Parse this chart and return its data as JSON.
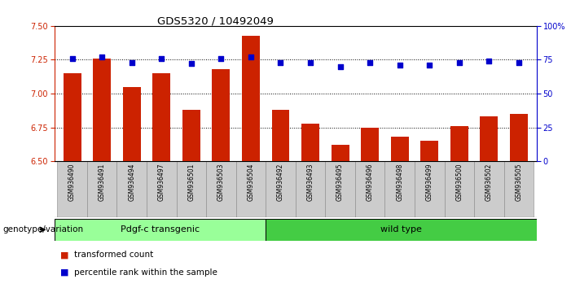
{
  "title": "GDS5320 / 10492049",
  "samples": [
    "GSM936490",
    "GSM936491",
    "GSM936494",
    "GSM936497",
    "GSM936501",
    "GSM936503",
    "GSM936504",
    "GSM936492",
    "GSM936493",
    "GSM936495",
    "GSM936496",
    "GSM936498",
    "GSM936499",
    "GSM936500",
    "GSM936502",
    "GSM936505"
  ],
  "bar_values": [
    7.15,
    7.26,
    7.05,
    7.15,
    6.88,
    7.18,
    7.43,
    6.88,
    6.78,
    6.62,
    6.75,
    6.68,
    6.65,
    6.76,
    6.83,
    6.85
  ],
  "percentile_values": [
    76,
    77,
    73,
    76,
    72,
    76,
    77,
    73,
    73,
    70,
    73,
    71,
    71,
    73,
    74,
    73
  ],
  "group1_label": "Pdgf-c transgenic",
  "group2_label": "wild type",
  "group1_count": 7,
  "group2_count": 9,
  "ylim_left": [
    6.5,
    7.5
  ],
  "ylim_right": [
    0,
    100
  ],
  "bar_color": "#cc2200",
  "dot_color": "#0000cc",
  "group1_color": "#99ff99",
  "group2_color": "#44cc44",
  "tick_bg_color": "#cccccc",
  "genotype_label": "genotype/variation",
  "legend_bar": "transformed count",
  "legend_dot": "percentile rank within the sample",
  "right_axis_ticks": [
    0,
    25,
    50,
    75,
    100
  ],
  "right_axis_labels": [
    "0",
    "25",
    "50",
    "75",
    "100%"
  ],
  "left_axis_ticks": [
    6.5,
    6.75,
    7.0,
    7.25,
    7.5
  ],
  "dotted_lines": [
    6.75,
    7.0,
    7.25
  ]
}
